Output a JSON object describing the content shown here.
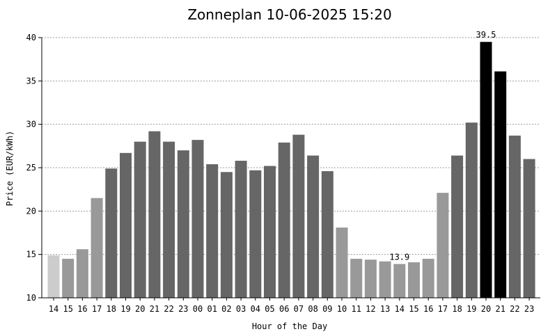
{
  "chart_data": {
    "type": "bar",
    "title": "Zonneplan 10-06-2025 15:20",
    "xlabel": "Hour of the Day",
    "ylabel": "Price (EUR/kWh)",
    "ylim": [
      10,
      40
    ],
    "yticks": [
      10,
      15,
      20,
      25,
      30,
      35,
      40
    ],
    "grid": "horizontal-dashed",
    "categories": [
      "14",
      "15",
      "16",
      "17",
      "18",
      "19",
      "20",
      "21",
      "22",
      "23",
      "00",
      "01",
      "02",
      "03",
      "04",
      "05",
      "06",
      "07",
      "08",
      "09",
      "10",
      "11",
      "12",
      "13",
      "14",
      "15",
      "16",
      "17",
      "18",
      "19",
      "20",
      "21",
      "22",
      "23"
    ],
    "values": [
      14.9,
      14.5,
      15.6,
      21.5,
      24.9,
      26.7,
      28.0,
      29.2,
      28.0,
      27.0,
      28.2,
      25.4,
      24.5,
      25.8,
      24.7,
      25.2,
      27.9,
      28.8,
      26.4,
      24.6,
      18.1,
      14.5,
      14.4,
      14.2,
      13.9,
      14.1,
      14.5,
      22.1,
      26.4,
      30.2,
      39.5,
      36.1,
      28.7,
      26.0
    ],
    "bar_colors": [
      "#cccccc",
      "#999999",
      "#999999",
      "#999999",
      "#666666",
      "#666666",
      "#666666",
      "#666666",
      "#666666",
      "#666666",
      "#666666",
      "#666666",
      "#666666",
      "#666666",
      "#666666",
      "#666666",
      "#666666",
      "#666666",
      "#666666",
      "#666666",
      "#999999",
      "#999999",
      "#999999",
      "#999999",
      "#999999",
      "#999999",
      "#999999",
      "#999999",
      "#666666",
      "#666666",
      "#000000",
      "#000000",
      "#666666",
      "#666666"
    ],
    "annotations": [
      {
        "index": 24,
        "text": "13.9"
      },
      {
        "index": 30,
        "text": "39.5"
      }
    ]
  }
}
